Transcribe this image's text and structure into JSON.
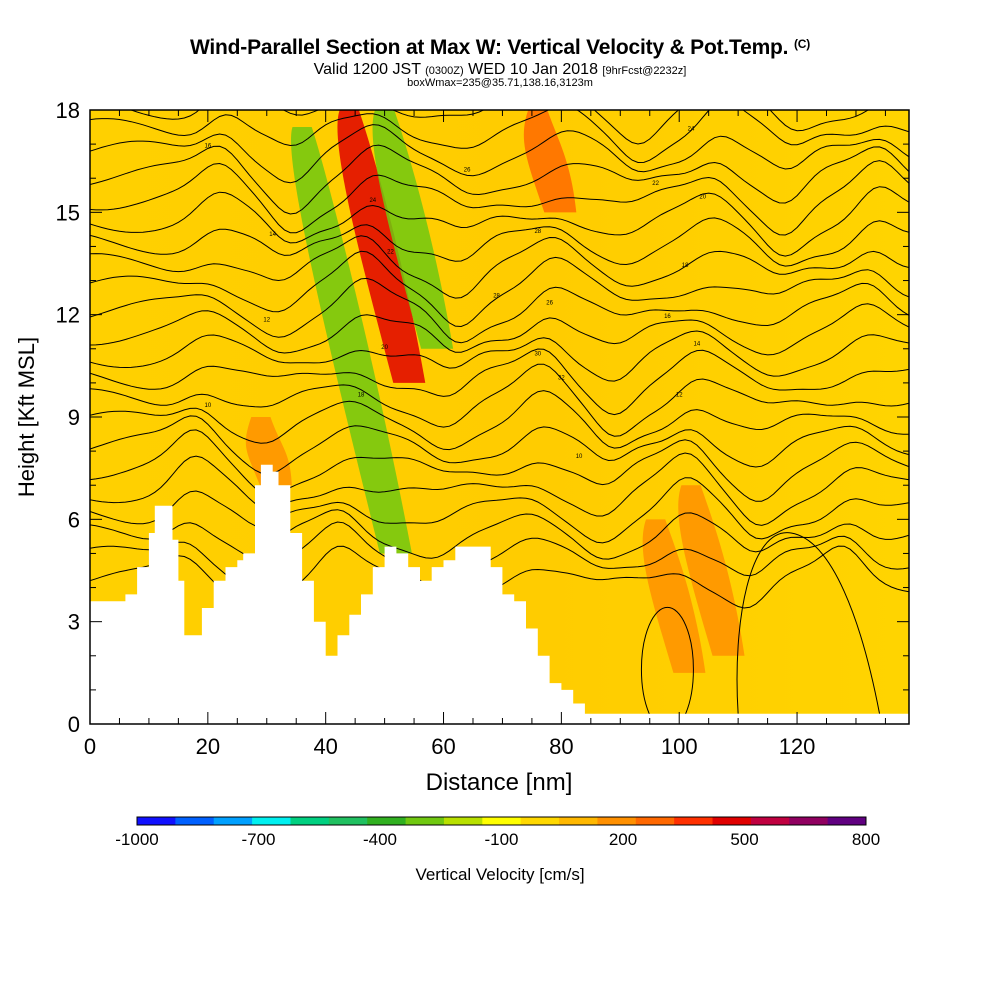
{
  "header": {
    "title": "Wind-Parallel Section at Max W: Vertical Velocity & Pot.Temp.",
    "title_mark": "(C)",
    "valid_prefix": "Valid 1200 JST",
    "valid_utc": "(0300Z)",
    "valid_date": "WED 10 Jan 2018",
    "forecast": "[9hrFcst@2232z]",
    "box_info": "boxWmax=235@35.71,138.16,3123m"
  },
  "chart_data": {
    "type": "heatmap",
    "title": "Wind-Parallel Section at Max W: Vertical Velocity & Pot.Temp.",
    "xlabel": "Distance [nm]",
    "ylabel": "Height [Kft MSL]",
    "xlim": [
      0,
      139
    ],
    "ylim": [
      0,
      18
    ],
    "x_ticks": [
      "0",
      "20",
      "40",
      "60",
      "80",
      "100",
      "120"
    ],
    "x_tick_values": [
      0,
      20,
      40,
      60,
      80,
      100,
      120
    ],
    "y_ticks": [
      "0",
      "3",
      "6",
      "9",
      "12",
      "15",
      "18"
    ],
    "y_tick_values": [
      0,
      3,
      6,
      9,
      12,
      15,
      18
    ],
    "colorbar": {
      "label": "Vertical Velocity [cm/s]",
      "tick_labels": [
        "-1000",
        "-700",
        "-400",
        "-100",
        "200",
        "500",
        "800"
      ],
      "tick_values": [
        -1000,
        -700,
        -400,
        -100,
        200,
        500,
        800
      ],
      "colors": [
        "#1010ff",
        "#0060ff",
        "#00a0ff",
        "#00f0f0",
        "#00d080",
        "#20c060",
        "#30b020",
        "#70c810",
        "#b8e000",
        "#ffff00",
        "#ffd800",
        "#ffb800",
        "#ff9000",
        "#ff6800",
        "#ff3000",
        "#e00000",
        "#c00040",
        "#900060",
        "#600080"
      ]
    },
    "terrain_profile": {
      "x": [
        0,
        4,
        6,
        8,
        10,
        11,
        13,
        14,
        15,
        16,
        17,
        19,
        21,
        23,
        25,
        26,
        28,
        29,
        30,
        31,
        32,
        34,
        36,
        38,
        40,
        41,
        42,
        44,
        46,
        48,
        50,
        52,
        54,
        56,
        58,
        60,
        62,
        64,
        66,
        68,
        70,
        72,
        74,
        76,
        78,
        80,
        82,
        84,
        86,
        139
      ],
      "height_kft": [
        3.6,
        3.6,
        3.8,
        4.6,
        5.6,
        6.4,
        6.4,
        5.4,
        4.2,
        2.6,
        2.6,
        3.4,
        4.2,
        4.6,
        4.8,
        5.0,
        7.0,
        7.6,
        7.6,
        7.4,
        7.0,
        5.6,
        4.2,
        3.0,
        2.0,
        2.0,
        2.6,
        3.2,
        3.8,
        4.6,
        5.2,
        5.0,
        4.6,
        4.2,
        4.6,
        4.8,
        5.2,
        5.2,
        5.2,
        4.6,
        3.8,
        3.6,
        2.8,
        2.0,
        1.2,
        1.0,
        0.6,
        0.3,
        0.3,
        0.3
      ]
    },
    "vertical_velocity_features": [
      {
        "x_center": 44,
        "top_kft": 18,
        "bottom_kft": 10,
        "value_cm_s": 500
      },
      {
        "x_center": 29,
        "top_kft": 9,
        "bottom_kft": 7,
        "value_cm_s": 200
      },
      {
        "x_center": 36,
        "top_kft": 17.5,
        "bottom_kft": 5,
        "value_cm_s": -300
      },
      {
        "x_center": 50,
        "top_kft": 18,
        "bottom_kft": 11,
        "value_cm_s": -300
      },
      {
        "x_center": 76,
        "top_kft": 18,
        "bottom_kft": 15,
        "value_cm_s": 300
      },
      {
        "x_center": 96,
        "top_kft": 6,
        "bottom_kft": 1.5,
        "value_cm_s": 150
      },
      {
        "x_center": 102,
        "top_kft": 7,
        "bottom_kft": 2,
        "value_cm_s": 150
      }
    ],
    "theta_contour_labels": [
      "10",
      "12",
      "14",
      "16",
      "18",
      "20",
      "22",
      "24",
      "26",
      "28",
      "30",
      "32"
    ]
  }
}
